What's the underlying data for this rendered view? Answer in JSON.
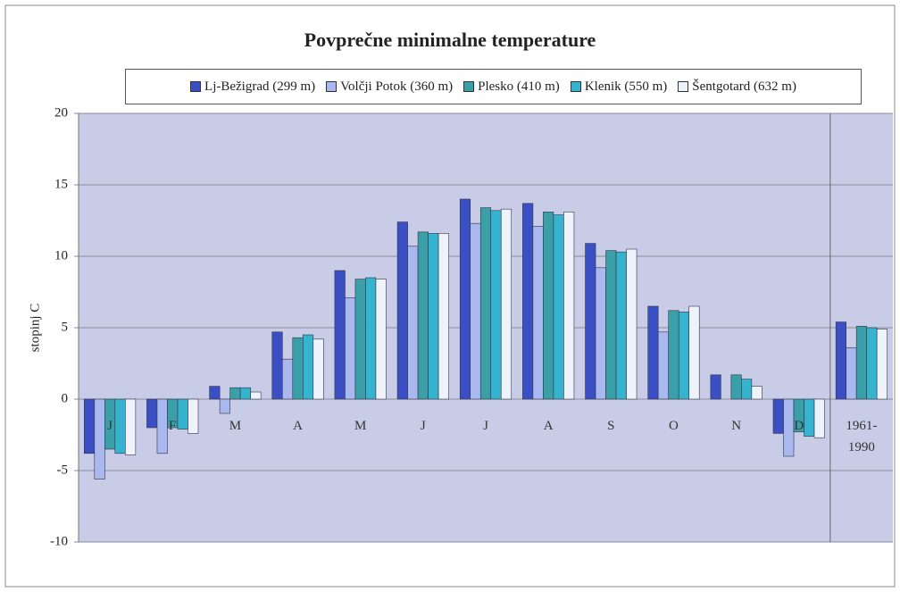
{
  "chart_data": {
    "type": "bar",
    "title": "Povprečne minimalne temperature",
    "y_label": "stopinj C",
    "categories": [
      "J",
      "F",
      "M",
      "A",
      "M",
      "J",
      "J",
      "A",
      "S",
      "O",
      "N",
      "D",
      "1961-1990"
    ],
    "series": [
      {
        "name": "Lj-Bežigrad (299 m)",
        "color": "#3b4fc4",
        "values": [
          -3.8,
          -2.0,
          0.9,
          4.7,
          9.0,
          12.4,
          14.0,
          13.7,
          10.9,
          6.5,
          1.7,
          -2.4,
          5.4
        ]
      },
      {
        "name": "Volčji Potok (360 m)",
        "color": "#a9b8ee",
        "values": [
          -5.6,
          -3.8,
          -1.0,
          2.8,
          7.1,
          10.7,
          12.3,
          12.1,
          9.2,
          4.7,
          0.0,
          -4.0,
          3.6
        ]
      },
      {
        "name": "Plesko (410 m)",
        "color": "#3a9fa8",
        "values": [
          -3.5,
          -2.0,
          0.8,
          4.3,
          8.4,
          11.7,
          13.4,
          13.1,
          10.4,
          6.2,
          1.7,
          -2.3,
          5.1
        ]
      },
      {
        "name": "Klenik (550 m)",
        "color": "#35b3cf",
        "values": [
          -3.8,
          -2.1,
          0.8,
          4.5,
          8.5,
          11.6,
          13.2,
          12.9,
          10.3,
          6.1,
          1.4,
          -2.6,
          5.0
        ]
      },
      {
        "name": "Šentgotard (632 m)",
        "color": "#eef3fb",
        "values": [
          -3.9,
          -2.4,
          0.5,
          4.2,
          8.4,
          11.6,
          13.3,
          13.1,
          10.5,
          6.5,
          0.9,
          -2.7,
          4.9
        ]
      }
    ],
    "ylim": [
      -10,
      20
    ],
    "yticks": [
      -10,
      -5,
      0,
      5,
      10,
      15,
      20
    ],
    "grid": true
  }
}
